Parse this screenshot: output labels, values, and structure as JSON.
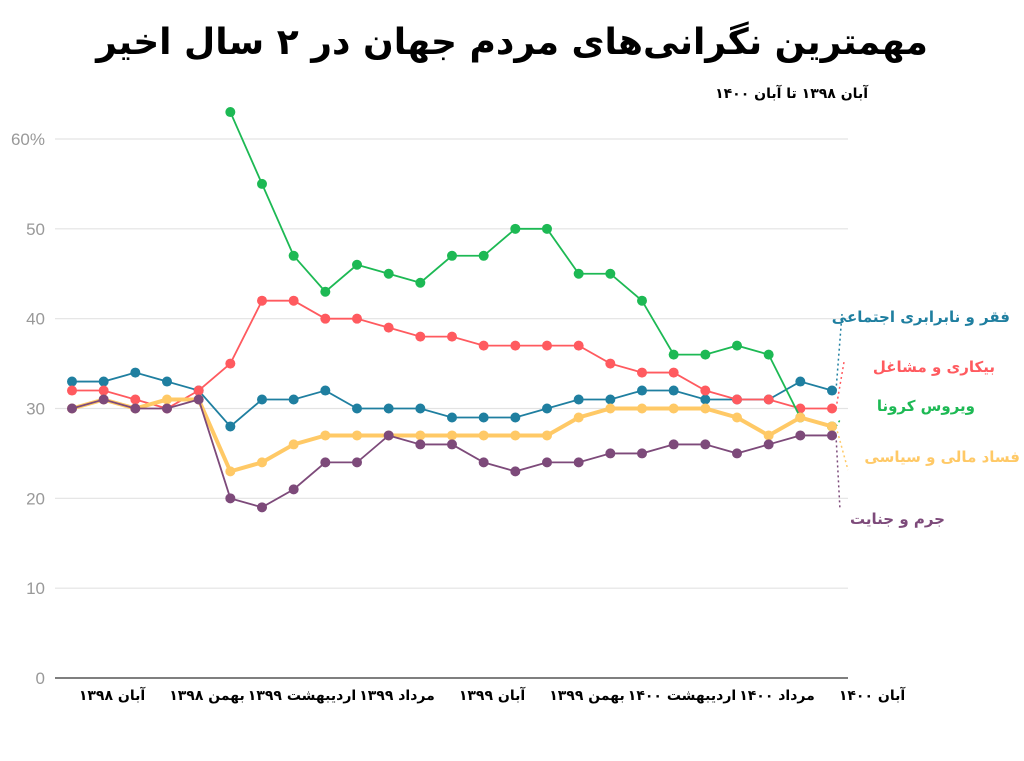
{
  "title": "مهمترین نگرانی‌های مردم جهان در ۲ سال اخیر",
  "subtitle": "آبان ۱۳۹۸ تا آبان ۱۴۰۰",
  "chart_data": {
    "type": "line",
    "title": "مهمترین نگرانی‌های مردم جهان در ۲ سال اخیر",
    "subtitle": "آبان ۱۳۹۸ تا آبان ۱۴۰۰",
    "xlabel": "",
    "ylabel": "",
    "ylim": [
      0,
      60
    ],
    "yticks": [
      0,
      10,
      20,
      30,
      40,
      50,
      60
    ],
    "ytick_labels": [
      "0",
      "10",
      "20",
      "30",
      "40",
      "50",
      "60%"
    ],
    "grid": true,
    "legend": "right, inline labels",
    "x_count": 25,
    "xtick_positions": [
      0,
      3,
      6,
      9,
      12,
      15,
      18,
      21,
      24
    ],
    "xtick_labels": [
      "آبان ۱۳۹۸",
      "بهمن ۱۳۹۸",
      "اردیبهشت ۱۳۹۹",
      "مرداد ۱۳۹۹",
      "آبان ۱۳۹۹",
      "بهمن ۱۳۹۹",
      "اردیبهشت ۱۴۰۰",
      "مرداد ۱۴۰۰",
      "آبان ۱۴۰۰"
    ],
    "series": [
      {
        "name": "فقر و نابرابری اجتماعی",
        "color": "#1f7fa0",
        "start": 0,
        "values": [
          33,
          33,
          34,
          33,
          32,
          28,
          31,
          31,
          32,
          30,
          30,
          30,
          29,
          29,
          29,
          30,
          31,
          31,
          32,
          32,
          31,
          31,
          31,
          33,
          32
        ]
      },
      {
        "name": "بیکاری و مشاغل",
        "color": "#ff5a5f",
        "start": 0,
        "values": [
          32,
          32,
          31,
          30,
          32,
          35,
          42,
          42,
          40,
          40,
          39,
          38,
          38,
          37,
          37,
          37,
          37,
          35,
          34,
          34,
          32,
          31,
          31,
          30,
          30
        ]
      },
      {
        "name": "ویروس کرونا",
        "color": "#1db954",
        "start": 5,
        "values": [
          63,
          55,
          47,
          43,
          46,
          45,
          44,
          47,
          47,
          50,
          50,
          45,
          45,
          42,
          36,
          36,
          37,
          36,
          29,
          28
        ]
      },
      {
        "name": "فساد مالی و سیاسی",
        "color": "#ffc966",
        "start": 0,
        "values": [
          30,
          31,
          30,
          31,
          31,
          23,
          24,
          26,
          27,
          27,
          27,
          27,
          27,
          27,
          27,
          27,
          29,
          30,
          30,
          30,
          30,
          29,
          27,
          29,
          28
        ]
      },
      {
        "name": "جرم و جنایت",
        "color": "#7d4a7a",
        "start": 0,
        "values": [
          30,
          31,
          30,
          30,
          31,
          20,
          19,
          21,
          24,
          24,
          27,
          26,
          26,
          24,
          23,
          24,
          24,
          25,
          25,
          26,
          26,
          25,
          26,
          27,
          27
        ]
      }
    ]
  }
}
